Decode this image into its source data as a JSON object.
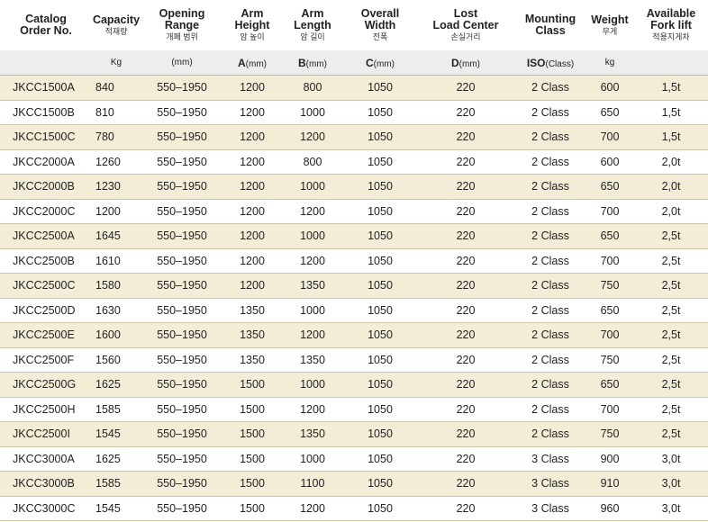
{
  "headers": [
    {
      "title": "Catalog\nOrder No.",
      "sub": ""
    },
    {
      "title": "Capacity",
      "sub": "적재량"
    },
    {
      "title": "Opening\nRange",
      "sub": "개폐 범위"
    },
    {
      "title": "Arm\nHeight",
      "sub": "암 높이"
    },
    {
      "title": "Arm\nLength",
      "sub": "암 길이"
    },
    {
      "title": "Overall\nWidth",
      "sub": "전폭"
    },
    {
      "title": "Lost\nLoad Center",
      "sub": "손실거리"
    },
    {
      "title": "Mounting\nClass",
      "sub": ""
    },
    {
      "title": "Weight",
      "sub": "무게"
    },
    {
      "title": "Available\nFork lift",
      "sub": "적용지게차"
    }
  ],
  "units": [
    {
      "letter": "",
      "unit": ""
    },
    {
      "letter": "",
      "unit": "Kg"
    },
    {
      "letter": "",
      "unit": "(mm)"
    },
    {
      "letter": "A",
      "unit": "(mm)"
    },
    {
      "letter": "B",
      "unit": "(mm)"
    },
    {
      "letter": "C",
      "unit": "(mm)"
    },
    {
      "letter": "D",
      "unit": "(mm)"
    },
    {
      "letter": "ISO",
      "unit": "(Class)"
    },
    {
      "letter": "",
      "unit": "kg"
    },
    {
      "letter": "",
      "unit": ""
    }
  ],
  "rows": [
    [
      "JKCC1500A",
      "840",
      "550–1950",
      "1200",
      "800",
      "1050",
      "220",
      "2 Class",
      "600",
      "1,5t"
    ],
    [
      "JKCC1500B",
      "810",
      "550–1950",
      "1200",
      "1000",
      "1050",
      "220",
      "2 Class",
      "650",
      "1,5t"
    ],
    [
      "JKCC1500C",
      "780",
      "550–1950",
      "1200",
      "1200",
      "1050",
      "220",
      "2 Class",
      "700",
      "1,5t"
    ],
    [
      "JKCC2000A",
      "1260",
      "550–1950",
      "1200",
      "800",
      "1050",
      "220",
      "2 Class",
      "600",
      "2,0t"
    ],
    [
      "JKCC2000B",
      "1230",
      "550–1950",
      "1200",
      "1000",
      "1050",
      "220",
      "2 Class",
      "650",
      "2,0t"
    ],
    [
      "JKCC2000C",
      "1200",
      "550–1950",
      "1200",
      "1200",
      "1050",
      "220",
      "2 Class",
      "700",
      "2,0t"
    ],
    [
      "JKCC2500A",
      "1645",
      "550–1950",
      "1200",
      "1000",
      "1050",
      "220",
      "2 Class",
      "650",
      "2,5t"
    ],
    [
      "JKCC2500B",
      "1610",
      "550–1950",
      "1200",
      "1200",
      "1050",
      "220",
      "2 Class",
      "700",
      "2,5t"
    ],
    [
      "JKCC2500C",
      "1580",
      "550–1950",
      "1200",
      "1350",
      "1050",
      "220",
      "2 Class",
      "750",
      "2,5t"
    ],
    [
      "JKCC2500D",
      "1630",
      "550–1950",
      "1350",
      "1000",
      "1050",
      "220",
      "2 Class",
      "650",
      "2,5t"
    ],
    [
      "JKCC2500E",
      "1600",
      "550–1950",
      "1350",
      "1200",
      "1050",
      "220",
      "2 Class",
      "700",
      "2,5t"
    ],
    [
      "JKCC2500F",
      "1560",
      "550–1950",
      "1350",
      "1350",
      "1050",
      "220",
      "2 Class",
      "750",
      "2,5t"
    ],
    [
      "JKCC2500G",
      "1625",
      "550–1950",
      "1500",
      "1000",
      "1050",
      "220",
      "2 Class",
      "650",
      "2,5t"
    ],
    [
      "JKCC2500H",
      "1585",
      "550–1950",
      "1500",
      "1200",
      "1050",
      "220",
      "2 Class",
      "700",
      "2,5t"
    ],
    [
      "JKCC2500I",
      "1545",
      "550–1950",
      "1500",
      "1350",
      "1050",
      "220",
      "2 Class",
      "750",
      "2,5t"
    ],
    [
      "JKCC3000A",
      "1625",
      "550–1950",
      "1500",
      "1000",
      "1050",
      "220",
      "3 Class",
      "900",
      "3,0t"
    ],
    [
      "JKCC3000B",
      "1585",
      "550–1950",
      "1500",
      "1100",
      "1050",
      "220",
      "3 Class",
      "910",
      "3,0t"
    ],
    [
      "JKCC3000C",
      "1545",
      "550–1950",
      "1500",
      "1200",
      "1050",
      "220",
      "3 Class",
      "960",
      "3,0t"
    ]
  ]
}
